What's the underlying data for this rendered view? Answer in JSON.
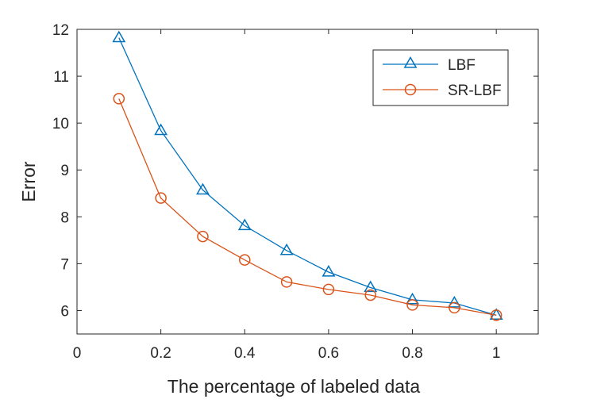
{
  "chart_data": {
    "type": "line",
    "title": "",
    "xlabel": "The percentage of labeled data",
    "ylabel": "Error",
    "xlim": [
      0,
      1.1
    ],
    "ylim": [
      5.5,
      12
    ],
    "grid": false,
    "legend_position": "top-right",
    "x_ticks": [
      0,
      0.2,
      0.4,
      0.6,
      0.8,
      1
    ],
    "x_tick_labels": [
      "0",
      "0.2",
      "0.4",
      "0.6",
      "0.8",
      "1"
    ],
    "y_ticks": [
      6,
      7,
      8,
      9,
      10,
      11,
      12
    ],
    "y_tick_labels": [
      "6",
      "7",
      "8",
      "9",
      "10",
      "11",
      "12"
    ],
    "x": [
      0.1,
      0.2,
      0.3,
      0.4,
      0.5,
      0.6,
      0.7,
      0.8,
      0.9,
      1.0
    ],
    "series": [
      {
        "name": "LBF",
        "marker": "triangle",
        "color": "#0072BD",
        "values": [
          11.82,
          9.84,
          8.57,
          7.81,
          7.28,
          6.82,
          6.49,
          6.23,
          6.16,
          5.9
        ]
      },
      {
        "name": "SR-LBF",
        "marker": "circle",
        "color": "#D95319",
        "values": [
          10.52,
          8.4,
          7.58,
          7.08,
          6.61,
          6.45,
          6.33,
          6.12,
          6.06,
          5.9
        ]
      }
    ]
  }
}
